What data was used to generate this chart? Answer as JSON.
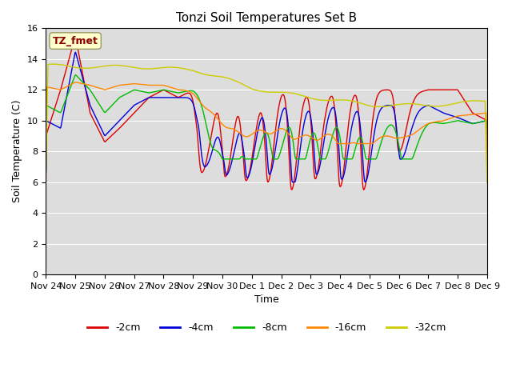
{
  "title": "Tonzi Soil Temperatures Set B",
  "xlabel": "Time",
  "ylabel": "Soil Temperature (C)",
  "plot_bg_color": "#dddddd",
  "ylim": [
    0,
    16
  ],
  "yticks": [
    0,
    2,
    4,
    6,
    8,
    10,
    12,
    14,
    16
  ],
  "series_colors": {
    "-2cm": "#dd0000",
    "-4cm": "#0000dd",
    "-8cm": "#00bb00",
    "-16cm": "#ff8800",
    "-32cm": "#cccc00"
  },
  "legend_label": "TZ_fmet",
  "xtick_labels": [
    "Nov 24",
    "Nov 25",
    "Nov 26",
    "Nov 27",
    "Nov 28",
    "Nov 29",
    "Nov 30",
    "Dec 1",
    "Dec 2",
    "Dec 3",
    "Dec 4",
    "Dec 5",
    "Dec 6",
    "Dec 7",
    "Dec 8",
    "Dec 9"
  ]
}
